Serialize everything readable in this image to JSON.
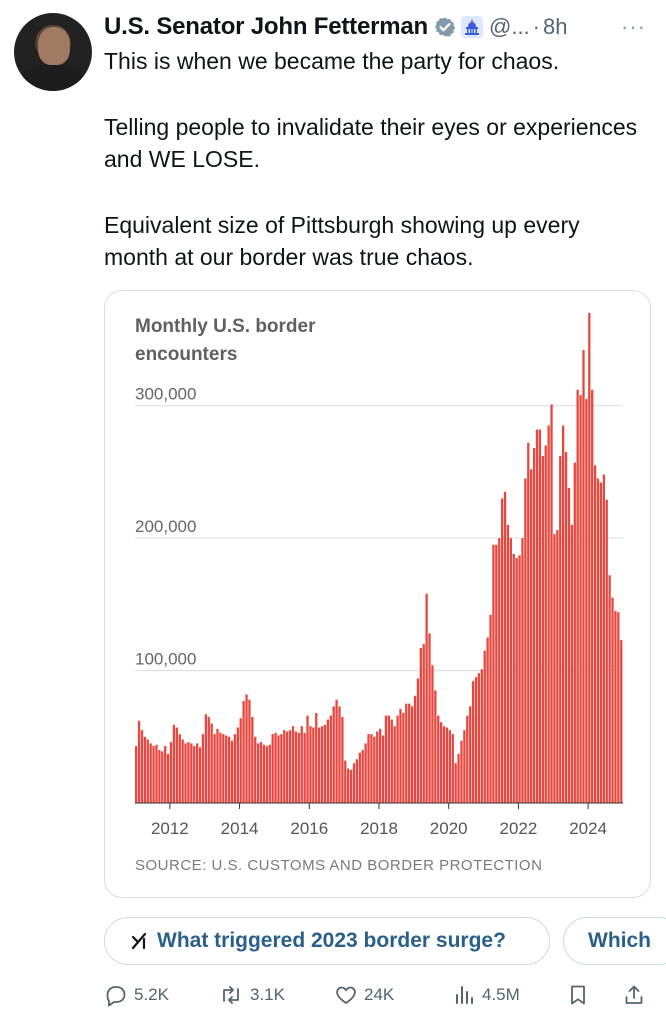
{
  "author": {
    "name": "U.S. Senator John Fetterman",
    "handle": "@...",
    "separator": "·",
    "time": "8h",
    "more": "···"
  },
  "tweet": {
    "paragraphs": [
      "This is when we became the party for chaos.",
      "Telling people to invalidate their eyes or experiences and WE LOSE.",
      "Equivalent size of Pittsburgh showing up every month at our border was true chaos."
    ]
  },
  "chart_data": {
    "type": "bar",
    "title": "Monthly U.S. border encounters",
    "source": "SOURCE: U.S. CUSTOMS AND BORDER PROTECTION",
    "bar_color": "#e8473f",
    "ylim": [
      0,
      370000
    ],
    "yticks": [
      {
        "value": 100000,
        "label": "100,000"
      },
      {
        "value": 200000,
        "label": "200,000"
      },
      {
        "value": 300000,
        "label": "300,000"
      }
    ],
    "xticks": [
      "2012",
      "2014",
      "2016",
      "2018",
      "2020",
      "2022",
      "2024"
    ],
    "x_start": "2011-01",
    "values": [
      43000,
      62000,
      55000,
      50000,
      48000,
      45000,
      43000,
      44000,
      40000,
      39000,
      43000,
      37000,
      46000,
      59000,
      57000,
      52000,
      48000,
      45000,
      46000,
      45000,
      43000,
      45000,
      42000,
      52000,
      67000,
      65000,
      60000,
      52000,
      56000,
      53000,
      52000,
      51000,
      50000,
      47000,
      52000,
      57000,
      64000,
      77000,
      82000,
      78000,
      65000,
      50000,
      45000,
      46000,
      44000,
      43000,
      44000,
      52000,
      53000,
      51000,
      52000,
      55000,
      54000,
      55000,
      58000,
      54000,
      53000,
      58000,
      53000,
      66000,
      58000,
      57000,
      68000,
      57000,
      58000,
      59000,
      63000,
      66000,
      73000,
      78000,
      73000,
      65000,
      32000,
      26000,
      25000,
      30000,
      33000,
      38000,
      40000,
      45000,
      52000,
      52000,
      50000,
      54000,
      56000,
      51000,
      66000,
      66000,
      63000,
      58000,
      66000,
      71000,
      68000,
      75000,
      75000,
      73000,
      81000,
      94000,
      117000,
      120000,
      158000,
      128000,
      104000,
      85000,
      66000,
      61000,
      58000,
      57000,
      55000,
      52000,
      30000,
      37000,
      47000,
      55000,
      66000,
      73000,
      92000,
      95000,
      98000,
      101000,
      115000,
      125000,
      142000,
      195000,
      195000,
      200000,
      230000,
      235000,
      210000,
      200000,
      188000,
      185000,
      187000,
      200000,
      245000,
      272000,
      252000,
      268000,
      282000,
      282000,
      262000,
      270000,
      285000,
      301000,
      203000,
      206000,
      262000,
      285000,
      265000,
      238000,
      210000,
      257000,
      312000,
      308000,
      342000,
      305000,
      370000,
      312000,
      255000,
      245000,
      242000,
      248000,
      229000,
      172000,
      155000,
      145000,
      144000,
      123000
    ]
  },
  "suggestions": [
    "What triggered 2023 border surge?",
    "Which"
  ],
  "actions": {
    "replies": "5.2K",
    "reposts": "3.1K",
    "likes": "24K",
    "views": "4.5M"
  },
  "colors": {
    "accent": "#1d9bf0",
    "muted": "#536471",
    "bar": "#e8473f"
  }
}
